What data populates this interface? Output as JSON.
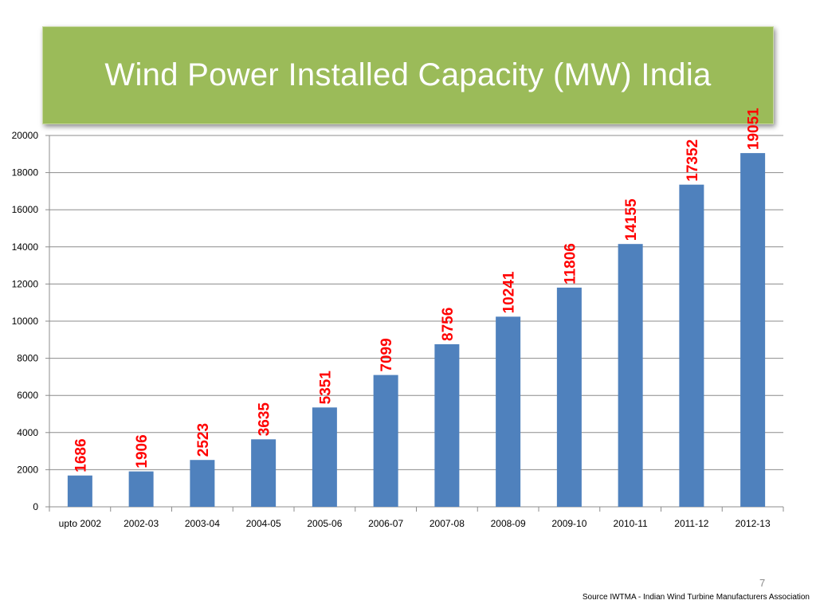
{
  "slide": {
    "title": "Wind Power Installed Capacity (MW) India",
    "page_number": "7",
    "source": "Source IWTMA - Indian Wind Turbine Manufacturers Association",
    "title_bg_color": "#9bbb59",
    "bar_color": "#4f81bd",
    "label_color": "#ff0000"
  },
  "chart_data": {
    "type": "bar",
    "categories": [
      "upto 2002",
      "2002-03",
      "2003-04",
      "2004-05",
      "2005-06",
      "2006-07",
      "2007-08",
      "2008-09",
      "2009-10",
      "2010-11",
      "2011-12",
      "2012-13"
    ],
    "values": [
      1686,
      1906,
      2523,
      3635,
      5351,
      7099,
      8756,
      10241,
      11806,
      14155,
      17352,
      19051
    ],
    "data_labels": [
      "1686",
      "1906",
      "2523",
      "3635",
      "5351",
      "7099",
      "8756",
      "10241",
      "11806",
      "14155",
      "17352",
      "19051"
    ],
    "ylim": [
      0,
      20000
    ],
    "yticks": [
      "0",
      "2000",
      "4000",
      "6000",
      "8000",
      "10000",
      "12000",
      "14000",
      "16000",
      "18000",
      "20000"
    ],
    "grid": true,
    "legend": "none"
  }
}
